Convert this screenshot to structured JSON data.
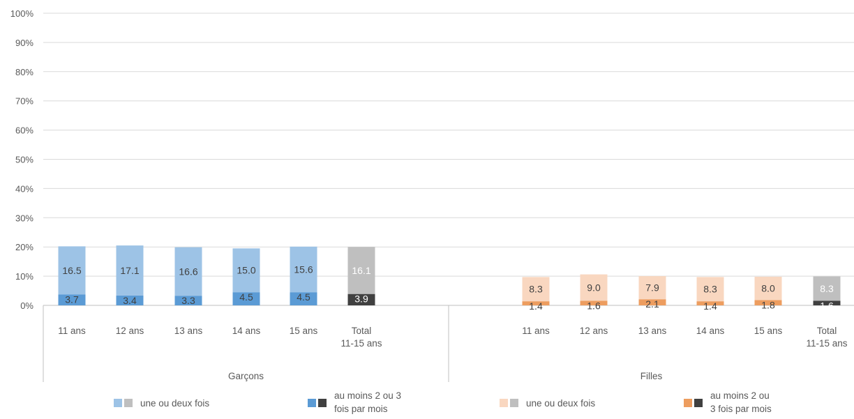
{
  "chart_data": {
    "type": "bar",
    "stacked": true,
    "y_ticks": [
      "0%",
      "10%",
      "20%",
      "30%",
      "40%",
      "50%",
      "60%",
      "70%",
      "80%",
      "90%",
      "100%"
    ],
    "ylim": [
      0,
      100
    ],
    "grid": true,
    "groups": [
      {
        "name": "Garçons",
        "categories": [
          "11 ans",
          "12 ans",
          "13 ans",
          "14 ans",
          "15 ans",
          "Total\n11-15 ans"
        ],
        "series": [
          {
            "role": "lower",
            "values": [
              3.7,
              3.4,
              3.3,
              4.5,
              4.5,
              3.9
            ],
            "colors": [
              "#5B9BD5",
              "#5B9BD5",
              "#5B9BD5",
              "#5B9BD5",
              "#5B9BD5",
              "#404040"
            ]
          },
          {
            "role": "upper",
            "values": [
              16.5,
              17.1,
              16.6,
              15.0,
              15.6,
              16.1
            ],
            "colors": [
              "#9DC3E6",
              "#9DC3E6",
              "#9DC3E6",
              "#9DC3E6",
              "#9DC3E6",
              "#BFBFBF"
            ]
          }
        ]
      },
      {
        "name": "Filles",
        "categories": [
          "11 ans",
          "12 ans",
          "13 ans",
          "14 ans",
          "15 ans",
          "Total\n11-15 ans"
        ],
        "series": [
          {
            "role": "lower",
            "values": [
              1.4,
              1.6,
              2.1,
              1.4,
              1.8,
              1.6
            ],
            "colors": [
              "#ED9D5F",
              "#ED9D5F",
              "#ED9D5F",
              "#ED9D5F",
              "#ED9D5F",
              "#404040"
            ]
          },
          {
            "role": "upper",
            "values": [
              8.3,
              9.0,
              7.9,
              8.3,
              8.0,
              8.3
            ],
            "colors": [
              "#F9D7C0",
              "#F9D7C0",
              "#F9D7C0",
              "#F9D7C0",
              "#F9D7C0",
              "#BFBFBF"
            ]
          }
        ]
      }
    ],
    "legend": {
      "placement": "bottom",
      "entries": [
        {
          "text": "une ou deux fois",
          "colors": [
            "#9DC3E6",
            "#BFBFBF"
          ]
        },
        {
          "text": "au moins 2 ou 3\nfois par mois",
          "colors": [
            "#5B9BD5",
            "#404040"
          ]
        },
        {
          "text": "une ou deux fois",
          "colors": [
            "#F9D7C0",
            "#BFBFBF"
          ]
        },
        {
          "text": "au moins 2 ou\n3 fois par mois",
          "colors": [
            "#ED9D5F",
            "#404040"
          ]
        }
      ]
    }
  }
}
